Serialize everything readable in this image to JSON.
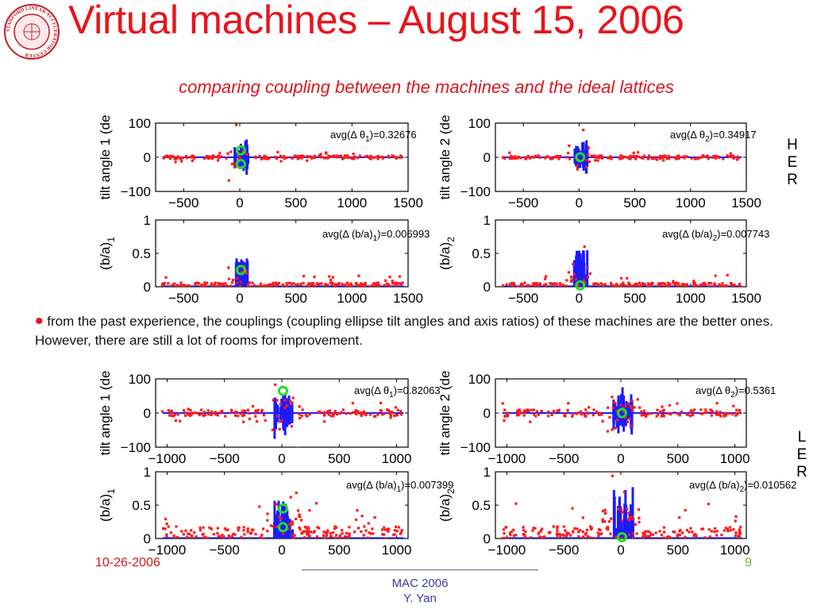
{
  "slide": {
    "title": "Virtual machines – August 15, 2006",
    "subtitle": "comparing coupling between the machines and the ideal lattices",
    "bullet_text": "from the past experience, the couplings (coupling ellipse tilt angles and axis ratios) of these machines are the better ones. However, there are still a lot of rooms for improvement.",
    "ring_labels": {
      "her": [
        "H",
        "E",
        "R"
      ],
      "ler": [
        "L",
        "E",
        "R"
      ]
    },
    "footer": {
      "date": "10-26-2006",
      "page": "9",
      "conference": "MAC 2006",
      "author": "Y. Yan"
    },
    "logo_text": "STANFORD LINEAR ACCELERATOR CENTER"
  },
  "colors": {
    "title": "#e8141b",
    "series_blue": "#1b1bff",
    "series_red": "#ff1a1a",
    "marker_green": "#22dd22",
    "footer_date": "#d81820",
    "footer_page": "#6fb523"
  },
  "chart_data": [
    {
      "id": "her-tilt-1",
      "type": "line",
      "ylabel": "tilt angle 1 (de",
      "annotation": "avg(Δ θ1)=0.32676",
      "annotation_main": "avg(Δ θ",
      "annotation_sub": "1",
      "annotation_tail": ")=0.32676",
      "xlim": [
        -750,
        1500
      ],
      "ylim": [
        -100,
        100
      ],
      "xticks": [
        -500,
        0,
        500,
        1000,
        1500
      ],
      "yticks": [
        -100,
        0,
        100
      ],
      "xticklabels": [
        "−500",
        "0",
        "500",
        "1000",
        "1500"
      ],
      "yticklabels": [
        "−100",
        "0",
        "100"
      ],
      "series": [],
      "green_markers": [
        {
          "x": 10,
          "y": 20
        },
        {
          "x": 10,
          "y": -20
        }
      ]
    },
    {
      "id": "her-tilt-2",
      "type": "line",
      "ylabel": "tilt angle 2 (de",
      "annotation": "avg(Δ θ2)=0.34917",
      "annotation_main": "avg(Δ θ",
      "annotation_sub": "2",
      "annotation_tail": ")=0.34917",
      "xlim": [
        -750,
        1500
      ],
      "ylim": [
        -100,
        100
      ],
      "xticks": [
        -500,
        0,
        500,
        1000,
        1500
      ],
      "yticks": [
        -100,
        0,
        100
      ],
      "xticklabels": [
        "−500",
        "0",
        "500",
        "1000",
        "1500"
      ],
      "yticklabels": [
        "−100",
        "0",
        "100"
      ],
      "series": [],
      "green_markers": [
        {
          "x": 10,
          "y": 0
        }
      ]
    },
    {
      "id": "her-ratio-1",
      "type": "line",
      "ylabel": "(b/a)",
      "ylabel_sub": "1",
      "annotation": "avg(Δ (b/a)1)=0.006993",
      "annotation_main": "avg(Δ (b/a)",
      "annotation_sub": "1",
      "annotation_tail": ")=0.006993",
      "xlim": [
        -750,
        1500
      ],
      "ylim": [
        0,
        1
      ],
      "xticks": [
        -500,
        0,
        500,
        1000,
        1500
      ],
      "yticks": [
        0,
        0.5,
        1
      ],
      "xticklabels": [
        "−500",
        "0",
        "500",
        "1000",
        "1500"
      ],
      "yticklabels": [
        "0",
        "0.5",
        "1"
      ],
      "series": [],
      "green_markers": [
        {
          "x": 10,
          "y": 0.25
        }
      ]
    },
    {
      "id": "her-ratio-2",
      "type": "line",
      "ylabel": "(b/a)",
      "ylabel_sub": "2",
      "annotation": "avg(Δ (b/a)2)=0.007743",
      "annotation_main": "avg(Δ (b/a)",
      "annotation_sub": "2",
      "annotation_tail": ")=0.007743",
      "xlim": [
        -750,
        1500
      ],
      "ylim": [
        0,
        1
      ],
      "xticks": [
        -500,
        0,
        500,
        1000,
        1500
      ],
      "yticks": [
        0,
        0.5,
        1
      ],
      "xticklabels": [
        "−500",
        "0",
        "500",
        "1000",
        "1500"
      ],
      "yticklabels": [
        "0",
        "0.5",
        "1"
      ],
      "series": [],
      "green_markers": [
        {
          "x": 10,
          "y": 0.02
        }
      ]
    },
    {
      "id": "ler-tilt-1",
      "type": "line",
      "ylabel": "tilt angle 1 (de",
      "annotation": "avg(Δ θ1)=0.82063",
      "annotation_main": "avg(Δ θ",
      "annotation_sub": "1",
      "annotation_tail": ")=0.82063",
      "xlim": [
        -1100,
        1100
      ],
      "ylim": [
        -100,
        100
      ],
      "xticks": [
        -1000,
        -500,
        0,
        500,
        1000
      ],
      "yticks": [
        -100,
        0,
        100
      ],
      "xticklabels": [
        "−1000",
        "−500",
        "0",
        "500",
        "1000"
      ],
      "yticklabels": [
        "−100",
        "0",
        "100"
      ],
      "series": [],
      "green_markers": [
        {
          "x": 10,
          "y": 65
        }
      ]
    },
    {
      "id": "ler-tilt-2",
      "type": "line",
      "ylabel": "tilt angle 2 (de",
      "annotation": "avg(Δ θ2)=0.5361",
      "annotation_main": "avg(Δ θ",
      "annotation_sub": "2",
      "annotation_tail": ")=0.5361",
      "xlim": [
        -1100,
        1100
      ],
      "ylim": [
        -100,
        100
      ],
      "xticks": [
        -1000,
        -500,
        0,
        500,
        1000
      ],
      "yticks": [
        -100,
        0,
        100
      ],
      "xticklabels": [
        "−1000",
        "−500",
        "0",
        "500",
        "1000"
      ],
      "yticklabels": [
        "−100",
        "0",
        "100"
      ],
      "series": [],
      "green_markers": [
        {
          "x": 10,
          "y": 0
        }
      ]
    },
    {
      "id": "ler-ratio-1",
      "type": "line",
      "ylabel": "(b/a)",
      "ylabel_sub": "1",
      "annotation": "avg(Δ (b/a)1)=0.007399",
      "annotation_main": "avg(Δ (b/a)",
      "annotation_sub": "1",
      "annotation_tail": ")=0.007399",
      "xlim": [
        -1100,
        1100
      ],
      "ylim": [
        0,
        1
      ],
      "xticks": [
        -1000,
        -500,
        0,
        500,
        1000
      ],
      "yticks": [
        0,
        0.5,
        1
      ],
      "xticklabels": [
        "−1000",
        "−500",
        "0",
        "500",
        "1000"
      ],
      "yticklabels": [
        "0",
        "0.5",
        "1"
      ],
      "series": [],
      "green_markers": [
        {
          "x": 10,
          "y": 0.45
        },
        {
          "x": 10,
          "y": 0.17
        }
      ]
    },
    {
      "id": "ler-ratio-2",
      "type": "line",
      "ylabel": "(b/a)",
      "ylabel_sub": "2",
      "annotation": "avg(Δ (b/a)2)=0.010562",
      "annotation_main": "avg(Δ (b/a)",
      "annotation_sub": "2",
      "annotation_tail": ")=0.010562",
      "xlim": [
        -1100,
        1100
      ],
      "ylim": [
        0,
        1
      ],
      "xticks": [
        -1000,
        -500,
        0,
        500,
        1000
      ],
      "yticks": [
        0,
        0.5,
        1
      ],
      "xticklabels": [
        "−1000",
        "−500",
        "0",
        "500",
        "1000"
      ],
      "yticklabels": [
        "0",
        "0.5",
        "1"
      ],
      "series": [],
      "green_markers": [
        {
          "x": 10,
          "y": 0.02
        }
      ]
    }
  ]
}
